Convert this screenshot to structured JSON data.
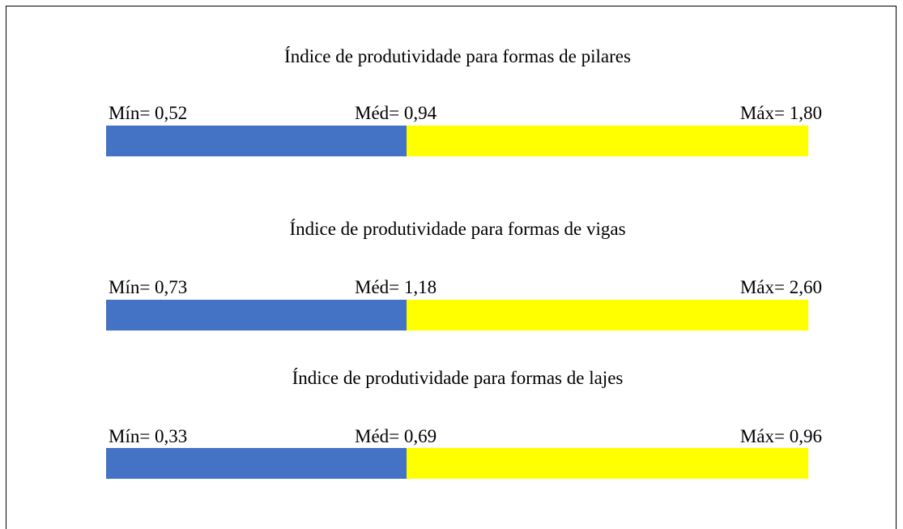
{
  "panels": [
    {
      "title": "Índice de produtividade para formas de pilares",
      "min": "Mín= 0,52",
      "med": "Méd= 0,94",
      "max": "Máx= 1,80"
    },
    {
      "title": "Índice de produtividade para formas de vigas",
      "min": "Mín= 0,73",
      "med": "Méd= 1,18",
      "max": "Máx= 2,60"
    },
    {
      "title": "Índice de produtividade para formas de lajes",
      "min": "Mín= 0,33",
      "med": "Méd= 0,69",
      "max": "Máx= 0,96"
    }
  ]
}
